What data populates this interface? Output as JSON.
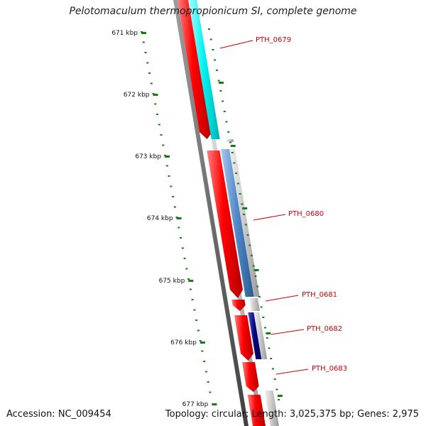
{
  "header": {
    "title": "Pelotomaculum thermopropionicum SI, complete genome"
  },
  "ticks": [
    {
      "label": "671 kbp"
    },
    {
      "label": "672 kbp"
    },
    {
      "label": "673 kbp"
    },
    {
      "label": "674 kbp"
    },
    {
      "label": "675 kbp"
    },
    {
      "label": "676 kbp"
    },
    {
      "label": "677 kbp"
    }
  ],
  "genes": [
    {
      "label": "PTH_0679",
      "color": "#00e8e8"
    },
    {
      "label": "PTH_0680",
      "color": "#4f86c6"
    },
    {
      "label": "PTH_0681",
      "color": "#8a8a8a"
    },
    {
      "label": "PTH_0682",
      "color": "#000080"
    },
    {
      "label": "PTH_0683",
      "color": "#8a8a8a"
    }
  ],
  "colors": {
    "cds": "#ff0000",
    "label": "#cc0000",
    "tick": "#1a7a1a",
    "backbone": "#7a7a7a",
    "similarity": "#b8b8b8"
  },
  "footer": {
    "accession": "Accession: NC_009454",
    "summary": "Topology: circular; Length: 3,025,375 bp; Genes: 2,975"
  }
}
